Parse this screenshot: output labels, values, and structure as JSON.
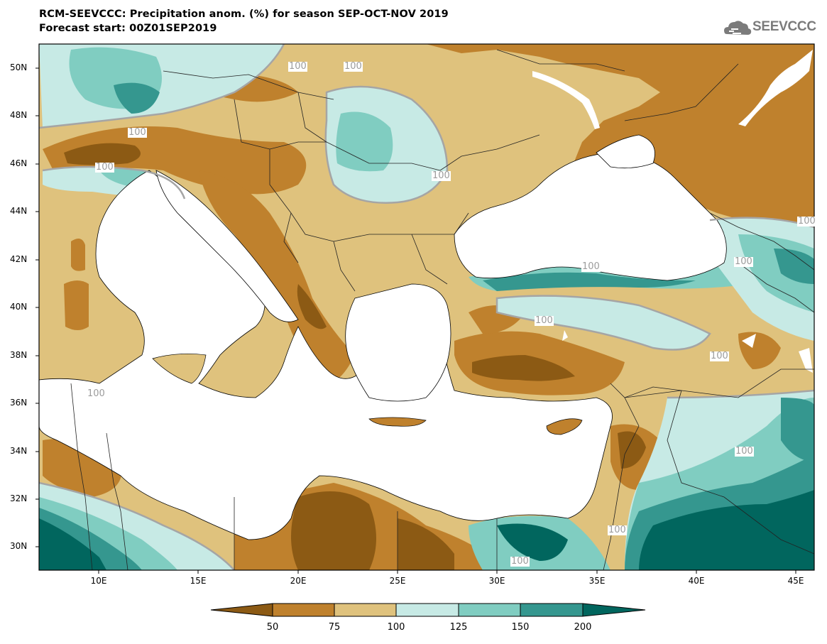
{
  "title_line1": "RCM-SEEVCCC: Precipitation anom. (%) for season SEP-OCT-NOV 2019",
  "title_line2": "Forecast start: 00Z01SEP2019",
  "logo_text": "SEEVCCC",
  "logo_icon": "cloud-logo-icon",
  "lat_labels": [
    "50N",
    "48N",
    "46N",
    "44N",
    "42N",
    "40N",
    "38N",
    "36N",
    "34N",
    "32N",
    "30N"
  ],
  "lon_labels": [
    "10E",
    "15E",
    "20E",
    "25E",
    "30E",
    "35E",
    "40E",
    "45E"
  ],
  "contour_label": "100",
  "colorbar": {
    "labels": [
      "50",
      "75",
      "100",
      "125",
      "150",
      "200"
    ],
    "colors": [
      "#8c5a14",
      "#bf812d",
      "#dfc27d",
      "#c7eae5",
      "#80cdc1",
      "#35978f",
      "#01665e"
    ]
  },
  "land_colors": {
    "dry_strong": "#8c5a14",
    "dry": "#bf812d",
    "dry_light": "#dfc27d",
    "wet_light": "#c7eae5",
    "wet": "#80cdc1",
    "wet_strong": "#35978f",
    "wet_very": "#01665e"
  }
}
